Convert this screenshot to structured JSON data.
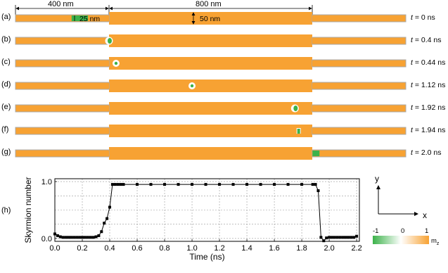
{
  "panels": [
    {
      "label": "(a)",
      "time": "= 0 ns",
      "skyrmion": {
        "shape": "rect",
        "x_nm": 240,
        "width_nm": 70
      }
    },
    {
      "label": "(b)",
      "time": "= 0.4 ns",
      "skyrmion": {
        "shape": "edge",
        "x_nm": 400
      }
    },
    {
      "label": "(c)",
      "time": "= 0.44 ns",
      "skyrmion": {
        "shape": "dot",
        "x_nm": 430
      }
    },
    {
      "label": "(d)",
      "time": "= 1.12 ns",
      "skyrmion": {
        "shape": "dot",
        "x_nm": 755
      }
    },
    {
      "label": "(e)",
      "time": "= 1.92 ns",
      "skyrmion": {
        "shape": "edge",
        "x_nm": 1195
      }
    },
    {
      "label": "(f)",
      "time": "= 1.94 ns",
      "skyrmion": {
        "shape": "edge-small",
        "x_nm": 1205
      }
    },
    {
      "label": "(g)",
      "time": "= 2.0 ns",
      "skyrmion": {
        "shape": "rect",
        "x_nm": 1270,
        "width_nm": 30
      }
    }
  ],
  "time_var": "t",
  "dims": {
    "narrow_length": "400 nm",
    "wide_length": "800 nm",
    "narrow_width": "25 nm",
    "wide_width": "50 nm"
  },
  "colors": {
    "orange": "#f7a233",
    "green": "#3cb24a",
    "wire_border": "#aaaaaa"
  },
  "plot": {
    "label": "(h)",
    "xlabel": "Time (ns)",
    "ylabel": "Skyrmion number",
    "xticks": [
      "0.0",
      "0.2",
      "0.4",
      "0.6",
      "0.8",
      "1.0",
      "1.2",
      "1.4",
      "1.6",
      "1.8",
      "2.0",
      "2.2"
    ],
    "yticks": [
      "0.0",
      "1.0"
    ]
  },
  "chart_data": {
    "type": "line",
    "xlabel": "Time (ns)",
    "ylabel": "Skyrmion number",
    "xlim": [
      0,
      2.22
    ],
    "ylim": [
      -0.05,
      1.05
    ],
    "grid": true,
    "x": [
      0.0,
      0.02,
      0.04,
      0.06,
      0.08,
      0.1,
      0.12,
      0.14,
      0.16,
      0.18,
      0.2,
      0.22,
      0.24,
      0.26,
      0.28,
      0.3,
      0.32,
      0.34,
      0.36,
      0.38,
      0.4,
      0.42,
      0.44,
      0.46,
      0.48,
      0.5,
      0.6,
      0.7,
      0.8,
      0.9,
      1.0,
      1.1,
      1.2,
      1.3,
      1.4,
      1.5,
      1.6,
      1.7,
      1.8,
      1.88,
      1.9,
      1.92,
      1.94,
      1.96,
      1.98,
      2.0,
      2.02,
      2.04,
      2.06,
      2.08,
      2.1,
      2.12,
      2.14,
      2.16,
      2.18,
      2.2
    ],
    "y": [
      0.08,
      0.05,
      0.03,
      0.02,
      0.02,
      0.02,
      0.02,
      0.02,
      0.02,
      0.02,
      0.02,
      0.02,
      0.02,
      0.02,
      0.02,
      0.03,
      0.05,
      0.12,
      0.27,
      0.35,
      0.55,
      0.95,
      0.95,
      0.95,
      0.95,
      0.95,
      0.95,
      0.95,
      0.95,
      0.95,
      0.95,
      0.95,
      0.95,
      0.95,
      0.95,
      0.95,
      0.95,
      0.95,
      0.95,
      0.95,
      0.95,
      0.84,
      0.02,
      -0.04,
      0.01,
      0.02,
      0.02,
      0.02,
      0.02,
      0.02,
      0.02,
      0.02,
      0.02,
      0.02,
      0.02,
      0.04
    ]
  },
  "axes_icon": {
    "y": "y",
    "x": "x"
  },
  "colorbar": {
    "min": "-1",
    "mid": "0",
    "max": "1",
    "label": "m",
    "label_sub": "z"
  }
}
